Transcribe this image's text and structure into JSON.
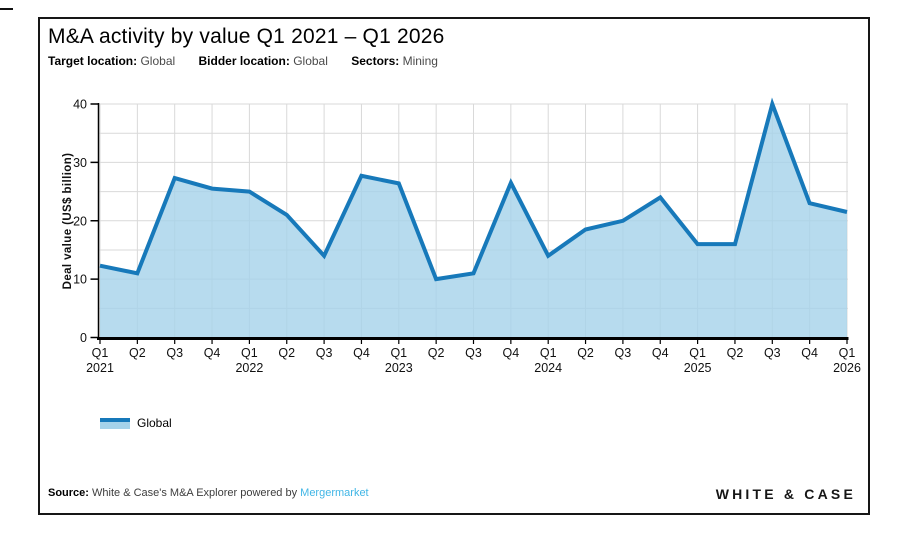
{
  "header": {
    "title": "M&A activity by value Q1 2021 – Q1 2026",
    "filters": [
      {
        "label": "Target location:",
        "value": "Global"
      },
      {
        "label": "Bidder location:",
        "value": "Global"
      },
      {
        "label": "Sectors:",
        "value": "Mining"
      }
    ]
  },
  "chart_data": {
    "type": "area",
    "title": "M&A activity by value Q1 2021 – Q1 2026",
    "xlabel": "",
    "ylabel": "Deal value (US$ billion)",
    "ylim": [
      0,
      40
    ],
    "ytick_interval": 10,
    "grid_interval": 5,
    "grid": true,
    "legend_position": "bottom-left",
    "categories": [
      {
        "quarter": "Q1",
        "year": "2021"
      },
      {
        "quarter": "Q2"
      },
      {
        "quarter": "Q3"
      },
      {
        "quarter": "Q4"
      },
      {
        "quarter": "Q1",
        "year": "2022"
      },
      {
        "quarter": "Q2"
      },
      {
        "quarter": "Q3"
      },
      {
        "quarter": "Q4"
      },
      {
        "quarter": "Q1",
        "year": "2023"
      },
      {
        "quarter": "Q2"
      },
      {
        "quarter": "Q3"
      },
      {
        "quarter": "Q4"
      },
      {
        "quarter": "Q1",
        "year": "2024"
      },
      {
        "quarter": "Q2"
      },
      {
        "quarter": "Q3"
      },
      {
        "quarter": "Q4"
      },
      {
        "quarter": "Q1",
        "year": "2025"
      },
      {
        "quarter": "Q2"
      },
      {
        "quarter": "Q3"
      },
      {
        "quarter": "Q4"
      },
      {
        "quarter": "Q1",
        "year": "2026"
      }
    ],
    "series": [
      {
        "name": "Global",
        "values": [
          12.3,
          11,
          27.3,
          25.5,
          25,
          21,
          14,
          27.7,
          26.4,
          10,
          11,
          26.5,
          14,
          18.5,
          20,
          24,
          16,
          16,
          40,
          23,
          21.5
        ]
      }
    ],
    "colors": {
      "line": "#1779ba",
      "fill": "#a5d2ea",
      "grid": "#d9d9d9",
      "axis": "#000000",
      "tick_label": "#111111"
    }
  },
  "footer": {
    "source_label": "Source:",
    "source_text": " White & Case's M&A Explorer powered by ",
    "source_link": "Mergermarket",
    "link_color": "#41b6e6",
    "brand": "WHITE & CASE"
  }
}
